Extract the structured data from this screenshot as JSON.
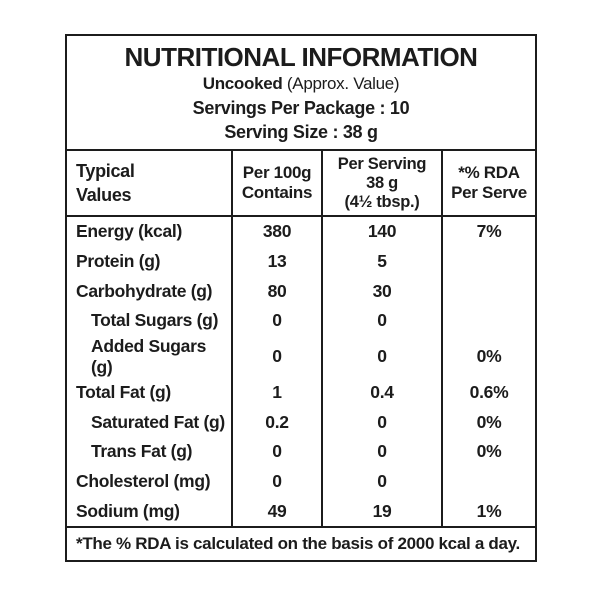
{
  "header": {
    "title": "NUTRITIONAL INFORMATION",
    "cooked_state": "Uncooked",
    "approx_note": " (Approx. Value)",
    "servings_line": "Servings Per Package : 10",
    "serving_size_line": "Serving Size : 38 g"
  },
  "column_headers": {
    "typical": {
      "line1": "Typical",
      "line2": "Values"
    },
    "per_100g": {
      "line1": "Per 100g",
      "line2": "Contains"
    },
    "per_serving": {
      "line1": "Per Serving",
      "line2": "38 g",
      "line3": "(4½ tbsp.)"
    },
    "rda": {
      "line1": "*% RDA",
      "line2": "Per Serve"
    }
  },
  "rows": [
    {
      "label": "Energy (kcal)",
      "per_100g": "380",
      "per_serving": "140",
      "rda": "7%"
    },
    {
      "label": "Protein (g)",
      "per_100g": "13",
      "per_serving": "5",
      "rda": ""
    },
    {
      "label": "Carbohydrate (g)",
      "per_100g": "80",
      "per_serving": "30",
      "rda": ""
    },
    {
      "label": "Total Sugars (g)",
      "per_100g": "0",
      "per_serving": "0",
      "rda": ""
    },
    {
      "label": "Added Sugars (g)",
      "per_100g": "0",
      "per_serving": "0",
      "rda": "0%"
    },
    {
      "label": "Total Fat (g)",
      "per_100g": "1",
      "per_serving": "0.4",
      "rda": "0.6%"
    },
    {
      "label": "Saturated Fat (g)",
      "per_100g": "0.2",
      "per_serving": "0",
      "rda": "0%"
    },
    {
      "label": "Trans Fat (g)",
      "per_100g": "0",
      "per_serving": "0",
      "rda": "0%"
    },
    {
      "label": "Cholesterol (mg)",
      "per_100g": "0",
      "per_serving": "0",
      "rda": ""
    },
    {
      "label": "Sodium (mg)",
      "per_100g": "49",
      "per_serving": "19",
      "rda": "1%"
    }
  ],
  "footer": {
    "note": "*The % RDA is calculated on the basis of 2000 kcal a day."
  },
  "colors": {
    "border": "#1c1c1c",
    "text": "#1c1c1c",
    "background": "#ffffff"
  }
}
